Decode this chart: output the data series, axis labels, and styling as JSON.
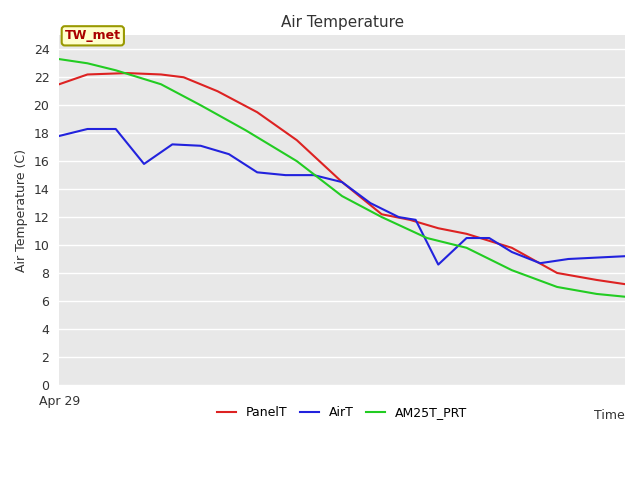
{
  "title": "Air Temperature",
  "xlabel": "Time",
  "ylabel": "Air Temperature (C)",
  "ylim": [
    0,
    25
  ],
  "yticks": [
    0,
    2,
    4,
    6,
    8,
    10,
    12,
    14,
    16,
    18,
    20,
    22,
    24
  ],
  "x_label_text": "Apr 29",
  "annotation_text": "TW_met",
  "annotation_box_color": "#ffffcc",
  "annotation_text_color": "#aa0000",
  "annotation_border_color": "#999900",
  "fig_bg_color": "#ffffff",
  "plot_bg_color": "#e8e8e8",
  "grid_color": "#ffffff",
  "series": {
    "PanelT": {
      "color": "#dd2222",
      "x": [
        0,
        0.05,
        0.12,
        0.18,
        0.22,
        0.28,
        0.35,
        0.42,
        0.5,
        0.57,
        0.62,
        0.67,
        0.72,
        0.8,
        0.88,
        0.95,
        1.0
      ],
      "y": [
        21.5,
        22.2,
        22.3,
        22.2,
        22.0,
        21.0,
        19.5,
        17.5,
        14.5,
        12.2,
        11.8,
        11.2,
        10.8,
        9.8,
        8.0,
        7.5,
        7.2
      ]
    },
    "AirT": {
      "color": "#2222dd",
      "x": [
        0,
        0.05,
        0.1,
        0.15,
        0.2,
        0.25,
        0.3,
        0.35,
        0.4,
        0.45,
        0.5,
        0.55,
        0.6,
        0.63,
        0.67,
        0.72,
        0.76,
        0.8,
        0.85,
        0.9,
        0.95,
        1.0
      ],
      "y": [
        17.8,
        18.3,
        18.3,
        15.8,
        17.2,
        17.1,
        16.5,
        15.2,
        15.0,
        15.0,
        14.5,
        13.0,
        12.0,
        11.8,
        8.6,
        10.5,
        10.5,
        9.5,
        8.7,
        9.0,
        9.1,
        9.2
      ]
    },
    "AM25T_PRT": {
      "color": "#22cc22",
      "x": [
        0,
        0.05,
        0.1,
        0.18,
        0.25,
        0.33,
        0.42,
        0.5,
        0.57,
        0.65,
        0.72,
        0.8,
        0.88,
        0.95,
        1.0
      ],
      "y": [
        23.3,
        23.0,
        22.5,
        21.5,
        20.0,
        18.2,
        16.0,
        13.5,
        12.0,
        10.5,
        9.8,
        8.2,
        7.0,
        6.5,
        6.3
      ]
    }
  },
  "legend_entries": [
    "PanelT",
    "AirT",
    "AM25T_PRT"
  ],
  "legend_colors": [
    "#dd2222",
    "#2222dd",
    "#22cc22"
  ]
}
